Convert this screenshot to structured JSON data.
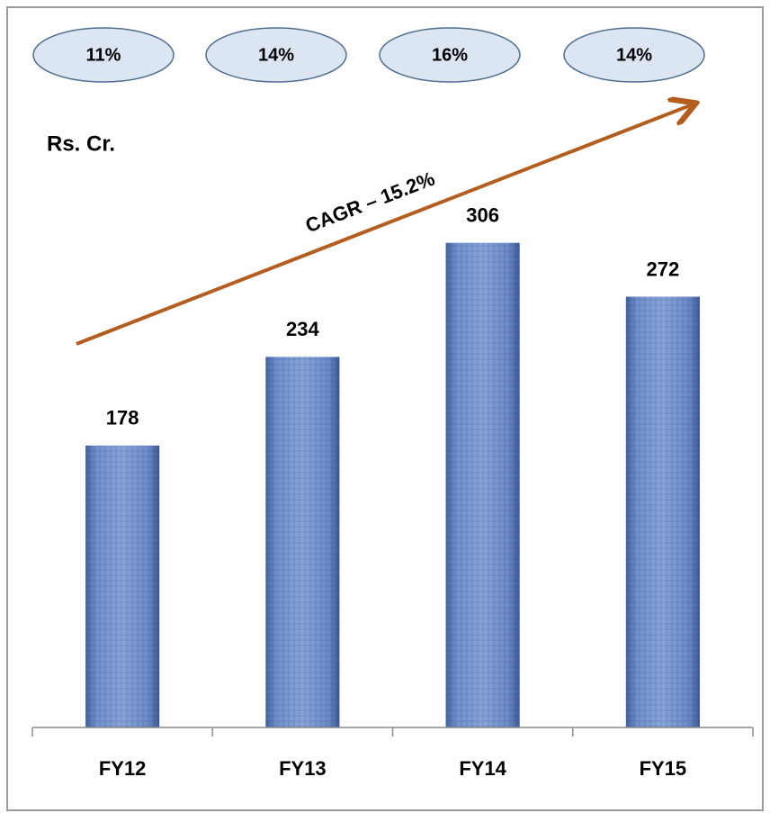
{
  "chart_data": {
    "type": "bar",
    "axis_label": "Rs. Cr.",
    "annotation": "CAGR – 15.2%",
    "badges": [
      "11%",
      "14%",
      "16%",
      "14%"
    ],
    "categories": [
      "FY12",
      "FY13",
      "FY14",
      "FY15"
    ],
    "values": [
      178,
      234,
      306,
      272
    ],
    "color": "#6a8ccc",
    "ylim": [
      0,
      340
    ]
  }
}
